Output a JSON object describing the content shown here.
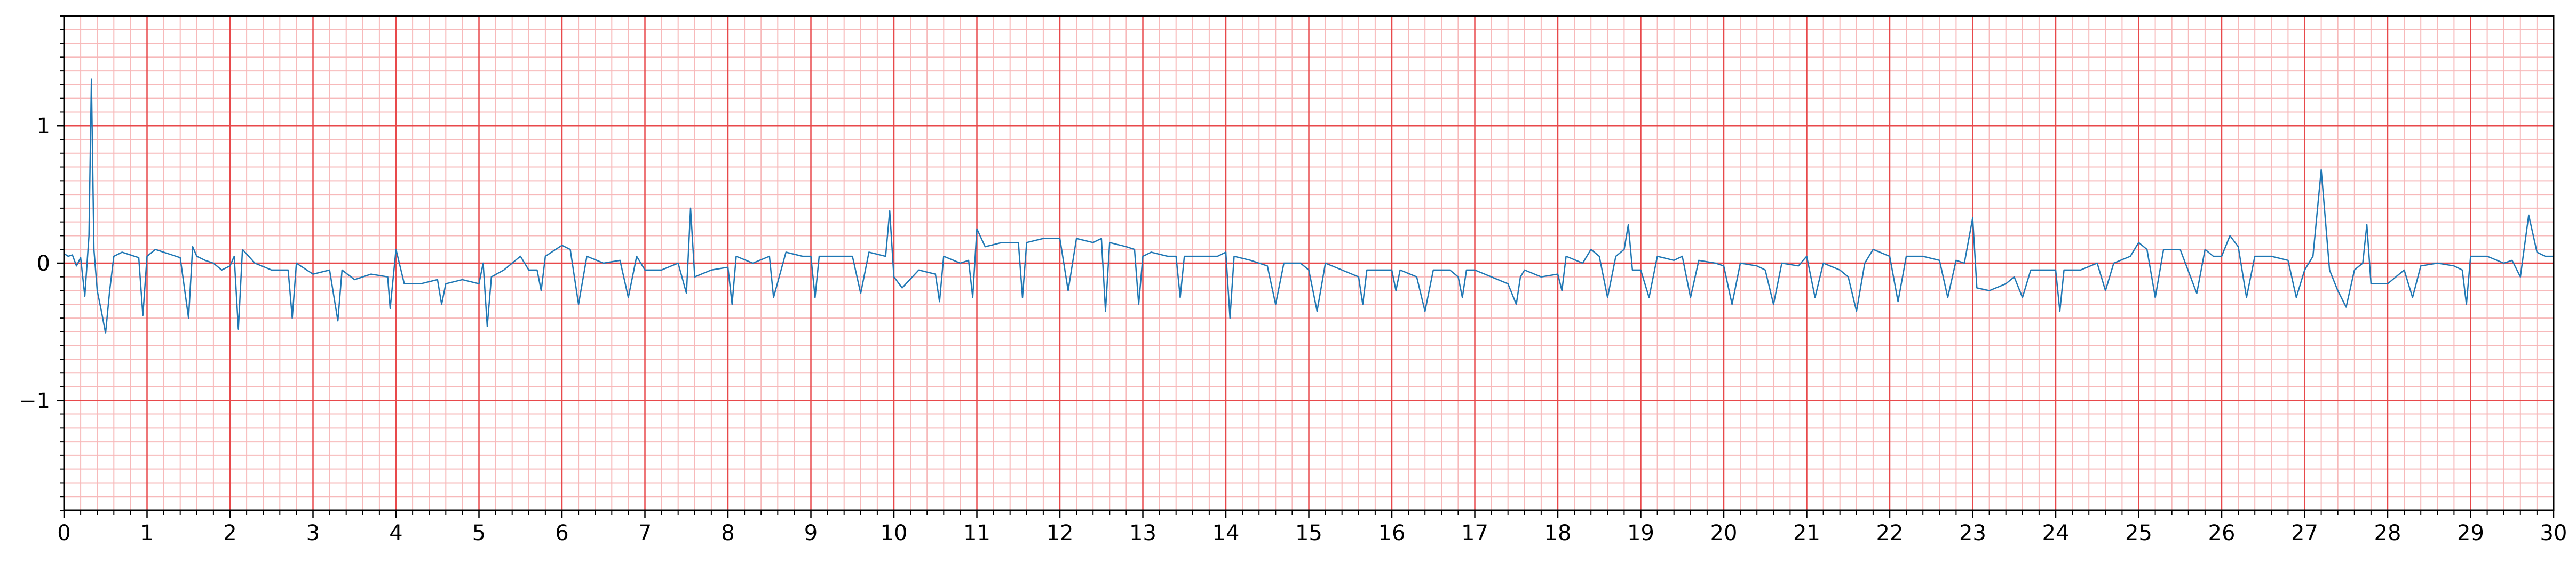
{
  "chart_data": {
    "type": "line",
    "title": "",
    "xlabel": "",
    "ylabel": "",
    "xlim": [
      0,
      30
    ],
    "ylim": [
      -1.8,
      1.8
    ],
    "x_ticks": [
      0,
      1,
      2,
      3,
      4,
      5,
      6,
      7,
      8,
      9,
      10,
      11,
      12,
      13,
      14,
      15,
      16,
      17,
      18,
      19,
      20,
      21,
      22,
      23,
      24,
      25,
      26,
      27,
      28,
      29,
      30
    ],
    "x_tick_labels": [
      "0",
      "1",
      "2",
      "3",
      "4",
      "5",
      "6",
      "7",
      "8",
      "9",
      "10",
      "11",
      "12",
      "13",
      "14",
      "15",
      "16",
      "17",
      "18",
      "19",
      "20",
      "21",
      "22",
      "23",
      "24",
      "25",
      "26",
      "27",
      "28",
      "29",
      "30"
    ],
    "y_ticks": [
      -1,
      0,
      1
    ],
    "y_tick_labels": [
      "−1",
      "0",
      "1"
    ],
    "grid": {
      "major": true,
      "minor": true,
      "major_step_x": 1,
      "minor_step_x": 0.2,
      "major_step_y": 1,
      "minor_step_y": 0.1,
      "major_color": "#e8494b",
      "minor_color": "#f7b9ba"
    },
    "line_color": "#1f77b4",
    "series": [
      {
        "values_xy": [
          [
            0.0,
            0.07
          ],
          [
            0.05,
            0.05
          ],
          [
            0.1,
            0.06
          ],
          [
            0.15,
            -0.02
          ],
          [
            0.2,
            0.04
          ],
          [
            0.25,
            -0.24
          ],
          [
            0.3,
            0.2
          ],
          [
            0.33,
            1.34
          ],
          [
            0.36,
            0.1
          ],
          [
            0.4,
            -0.2
          ],
          [
            0.45,
            -0.35
          ],
          [
            0.5,
            -0.51
          ],
          [
            0.55,
            -0.2
          ],
          [
            0.6,
            0.05
          ],
          [
            0.7,
            0.08
          ],
          [
            0.8,
            0.06
          ],
          [
            0.9,
            0.04
          ],
          [
            0.95,
            -0.38
          ],
          [
            1.0,
            0.05
          ],
          [
            1.1,
            0.1
          ],
          [
            1.2,
            0.08
          ],
          [
            1.3,
            0.06
          ],
          [
            1.4,
            0.04
          ],
          [
            1.5,
            -0.4
          ],
          [
            1.55,
            0.12
          ],
          [
            1.6,
            0.05
          ],
          [
            1.7,
            0.02
          ],
          [
            1.8,
            0.0
          ],
          [
            1.9,
            -0.05
          ],
          [
            2.0,
            -0.02
          ],
          [
            2.05,
            0.05
          ],
          [
            2.1,
            -0.48
          ],
          [
            2.15,
            0.1
          ],
          [
            2.3,
            0.0
          ],
          [
            2.5,
            -0.05
          ],
          [
            2.7,
            -0.05
          ],
          [
            2.75,
            -0.4
          ],
          [
            2.8,
            0.0
          ],
          [
            3.0,
            -0.08
          ],
          [
            3.2,
            -0.05
          ],
          [
            3.3,
            -0.42
          ],
          [
            3.35,
            -0.05
          ],
          [
            3.5,
            -0.12
          ],
          [
            3.7,
            -0.08
          ],
          [
            3.9,
            -0.1
          ],
          [
            3.93,
            -0.33
          ],
          [
            4.0,
            0.1
          ],
          [
            4.1,
            -0.15
          ],
          [
            4.3,
            -0.15
          ],
          [
            4.5,
            -0.12
          ],
          [
            4.55,
            -0.3
          ],
          [
            4.6,
            -0.15
          ],
          [
            4.8,
            -0.12
          ],
          [
            5.0,
            -0.15
          ],
          [
            5.05,
            0.0
          ],
          [
            5.1,
            -0.46
          ],
          [
            5.15,
            -0.1
          ],
          [
            5.3,
            -0.05
          ],
          [
            5.5,
            0.05
          ],
          [
            5.6,
            -0.05
          ],
          [
            5.7,
            -0.05
          ],
          [
            5.75,
            -0.2
          ],
          [
            5.8,
            0.05
          ],
          [
            6.0,
            0.13
          ],
          [
            6.1,
            0.1
          ],
          [
            6.2,
            -0.3
          ],
          [
            6.3,
            0.05
          ],
          [
            6.5,
            0.0
          ],
          [
            6.7,
            0.02
          ],
          [
            6.8,
            -0.25
          ],
          [
            6.9,
            0.05
          ],
          [
            7.0,
            -0.05
          ],
          [
            7.2,
            -0.05
          ],
          [
            7.4,
            0.0
          ],
          [
            7.5,
            -0.22
          ],
          [
            7.55,
            0.4
          ],
          [
            7.6,
            -0.1
          ],
          [
            7.8,
            -0.05
          ],
          [
            8.0,
            -0.03
          ],
          [
            8.05,
            -0.3
          ],
          [
            8.1,
            0.05
          ],
          [
            8.3,
            0.0
          ],
          [
            8.5,
            0.05
          ],
          [
            8.55,
            -0.25
          ],
          [
            8.7,
            0.08
          ],
          [
            8.9,
            0.05
          ],
          [
            9.0,
            0.05
          ],
          [
            9.05,
            -0.25
          ],
          [
            9.1,
            0.05
          ],
          [
            9.3,
            0.05
          ],
          [
            9.5,
            0.05
          ],
          [
            9.6,
            -0.22
          ],
          [
            9.7,
            0.08
          ],
          [
            9.9,
            0.05
          ],
          [
            9.95,
            0.38
          ],
          [
            10.0,
            -0.1
          ],
          [
            10.1,
            -0.18
          ],
          [
            10.3,
            -0.05
          ],
          [
            10.5,
            -0.08
          ],
          [
            10.55,
            -0.28
          ],
          [
            10.6,
            0.05
          ],
          [
            10.8,
            0.0
          ],
          [
            10.9,
            0.02
          ],
          [
            10.95,
            -0.25
          ],
          [
            11.0,
            0.25
          ],
          [
            11.1,
            0.12
          ],
          [
            11.3,
            0.15
          ],
          [
            11.5,
            0.15
          ],
          [
            11.55,
            -0.25
          ],
          [
            11.6,
            0.15
          ],
          [
            11.8,
            0.18
          ],
          [
            12.0,
            0.18
          ],
          [
            12.1,
            -0.2
          ],
          [
            12.2,
            0.18
          ],
          [
            12.4,
            0.15
          ],
          [
            12.5,
            0.18
          ],
          [
            12.55,
            -0.35
          ],
          [
            12.6,
            0.15
          ],
          [
            12.8,
            0.12
          ],
          [
            12.9,
            0.1
          ],
          [
            12.95,
            -0.3
          ],
          [
            13.0,
            0.05
          ],
          [
            13.1,
            0.08
          ],
          [
            13.3,
            0.05
          ],
          [
            13.4,
            0.05
          ],
          [
            13.45,
            -0.25
          ],
          [
            13.5,
            0.05
          ],
          [
            13.7,
            0.05
          ],
          [
            13.9,
            0.05
          ],
          [
            14.0,
            0.08
          ],
          [
            14.05,
            -0.4
          ],
          [
            14.1,
            0.05
          ],
          [
            14.3,
            0.02
          ],
          [
            14.5,
            -0.02
          ],
          [
            14.6,
            -0.3
          ],
          [
            14.7,
            0.0
          ],
          [
            14.9,
            0.0
          ],
          [
            15.0,
            -0.05
          ],
          [
            15.1,
            -0.35
          ],
          [
            15.2,
            0.0
          ],
          [
            15.4,
            -0.05
          ],
          [
            15.6,
            -0.1
          ],
          [
            15.65,
            -0.3
          ],
          [
            15.7,
            -0.05
          ],
          [
            15.9,
            -0.05
          ],
          [
            16.0,
            -0.05
          ],
          [
            16.05,
            -0.2
          ],
          [
            16.1,
            -0.05
          ],
          [
            16.3,
            -0.1
          ],
          [
            16.4,
            -0.35
          ],
          [
            16.5,
            -0.05
          ],
          [
            16.7,
            -0.05
          ],
          [
            16.8,
            -0.1
          ],
          [
            16.85,
            -0.25
          ],
          [
            16.9,
            -0.05
          ],
          [
            17.0,
            -0.05
          ],
          [
            17.2,
            -0.1
          ],
          [
            17.4,
            -0.15
          ],
          [
            17.5,
            -0.3
          ],
          [
            17.55,
            -0.1
          ],
          [
            17.6,
            -0.05
          ],
          [
            17.8,
            -0.1
          ],
          [
            18.0,
            -0.08
          ],
          [
            18.05,
            -0.2
          ],
          [
            18.1,
            0.05
          ],
          [
            18.3,
            0.0
          ],
          [
            18.4,
            0.1
          ],
          [
            18.5,
            0.05
          ],
          [
            18.6,
            -0.25
          ],
          [
            18.7,
            0.05
          ],
          [
            18.8,
            0.1
          ],
          [
            18.85,
            0.28
          ],
          [
            18.9,
            -0.05
          ],
          [
            19.0,
            -0.05
          ],
          [
            19.1,
            -0.25
          ],
          [
            19.2,
            0.05
          ],
          [
            19.4,
            0.02
          ],
          [
            19.5,
            0.05
          ],
          [
            19.6,
            -0.25
          ],
          [
            19.7,
            0.02
          ],
          [
            19.9,
            0.0
          ],
          [
            20.0,
            -0.02
          ],
          [
            20.1,
            -0.3
          ],
          [
            20.2,
            0.0
          ],
          [
            20.4,
            -0.02
          ],
          [
            20.5,
            -0.05
          ],
          [
            20.6,
            -0.3
          ],
          [
            20.7,
            0.0
          ],
          [
            20.9,
            -0.02
          ],
          [
            21.0,
            0.05
          ],
          [
            21.1,
            -0.25
          ],
          [
            21.2,
            0.0
          ],
          [
            21.4,
            -0.05
          ],
          [
            21.5,
            -0.1
          ],
          [
            21.6,
            -0.35
          ],
          [
            21.7,
            0.0
          ],
          [
            21.8,
            0.1
          ],
          [
            22.0,
            0.05
          ],
          [
            22.1,
            -0.28
          ],
          [
            22.2,
            0.05
          ],
          [
            22.4,
            0.05
          ],
          [
            22.6,
            0.02
          ],
          [
            22.7,
            -0.25
          ],
          [
            22.8,
            0.02
          ],
          [
            22.9,
            0.0
          ],
          [
            23.0,
            0.33
          ],
          [
            23.05,
            -0.18
          ],
          [
            23.2,
            -0.2
          ],
          [
            23.4,
            -0.15
          ],
          [
            23.5,
            -0.1
          ],
          [
            23.6,
            -0.25
          ],
          [
            23.7,
            -0.05
          ],
          [
            23.9,
            -0.05
          ],
          [
            24.0,
            -0.05
          ],
          [
            24.05,
            -0.35
          ],
          [
            24.1,
            -0.05
          ],
          [
            24.3,
            -0.05
          ],
          [
            24.5,
            0.0
          ],
          [
            24.6,
            -0.2
          ],
          [
            24.7,
            0.0
          ],
          [
            24.9,
            0.05
          ],
          [
            25.0,
            0.15
          ],
          [
            25.1,
            0.1
          ],
          [
            25.2,
            -0.25
          ],
          [
            25.3,
            0.1
          ],
          [
            25.5,
            0.1
          ],
          [
            25.7,
            -0.22
          ],
          [
            25.8,
            0.1
          ],
          [
            25.9,
            0.05
          ],
          [
            26.0,
            0.05
          ],
          [
            26.1,
            0.2
          ],
          [
            26.2,
            0.12
          ],
          [
            26.3,
            -0.25
          ],
          [
            26.4,
            0.05
          ],
          [
            26.6,
            0.05
          ],
          [
            26.8,
            0.02
          ],
          [
            26.9,
            -0.25
          ],
          [
            27.0,
            -0.05
          ],
          [
            27.1,
            0.05
          ],
          [
            27.2,
            0.68
          ],
          [
            27.3,
            -0.05
          ],
          [
            27.4,
            -0.2
          ],
          [
            27.5,
            -0.32
          ],
          [
            27.6,
            -0.05
          ],
          [
            27.7,
            0.0
          ],
          [
            27.75,
            0.28
          ],
          [
            27.8,
            -0.15
          ],
          [
            28.0,
            -0.15
          ],
          [
            28.2,
            -0.05
          ],
          [
            28.3,
            -0.25
          ],
          [
            28.4,
            -0.02
          ],
          [
            28.6,
            0.0
          ],
          [
            28.8,
            -0.02
          ],
          [
            28.9,
            -0.05
          ],
          [
            28.95,
            -0.3
          ],
          [
            29.0,
            0.05
          ],
          [
            29.2,
            0.05
          ],
          [
            29.4,
            0.0
          ],
          [
            29.5,
            0.02
          ],
          [
            29.6,
            -0.1
          ],
          [
            29.7,
            0.35
          ],
          [
            29.8,
            0.08
          ],
          [
            29.9,
            0.05
          ],
          [
            30.0,
            0.05
          ]
        ]
      }
    ]
  }
}
